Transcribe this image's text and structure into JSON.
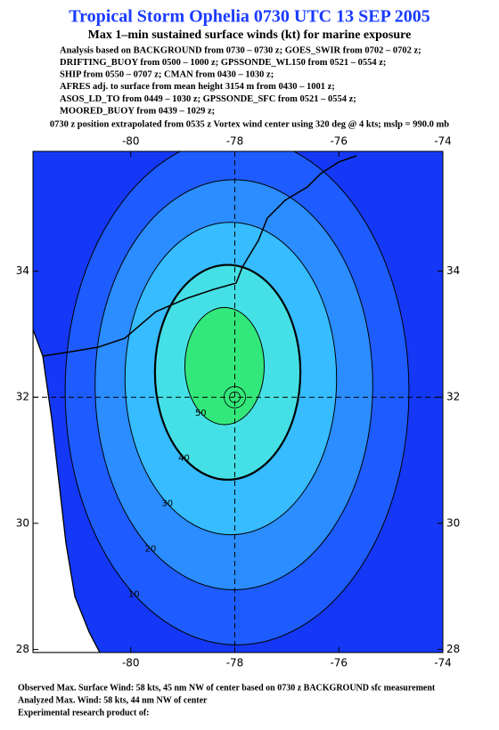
{
  "header": {
    "title": "Tropical Storm Ophelia 0730 UTC 13 SEP 2005",
    "subtitle": "Max 1–min sustained surface winds (kt) for marine exposure",
    "analysis_lines": [
      "Analysis based on  BACKGROUND from 0730 – 0730 z;  GOES_SWIR from 0702 – 0702 z;",
      "DRIFTING_BUOY from 0500 – 1000 z;  GPSSONDE_WL150 from 0521 – 0554 z;",
      "SHIP from 0550 – 0707 z;  CMAN from 0430 – 1030 z;",
      "AFRES adj. to surface from mean height 3154 m from 0430 – 1001 z;",
      "ASOS_LD_TO from 0449 – 1030 z;  GPSSONDE_SFC from 0521 – 0554 z;",
      "MOORED_BUOY from 0439 – 1029 z;"
    ],
    "position_note": "0730 z position extrapolated from 0535 z Vortex wind center using 320 deg @ 4 kts; mslp = 990.0 mb"
  },
  "map": {
    "xlim": [
      -81.88,
      -74
    ],
    "ylim": [
      27.95,
      35.9
    ],
    "xticks": [
      -80,
      -78,
      -76,
      -74
    ],
    "yticks": [
      28,
      30,
      32,
      34
    ],
    "center": {
      "lon": -78,
      "lat": 32
    },
    "base_color": "#1438f5",
    "contour_levels": [
      10,
      20,
      30,
      40,
      50
    ],
    "level_colors": [
      "#1e5cff",
      "#2b8dff",
      "#36bcff",
      "#45e0e6",
      "#33e87a"
    ]
  },
  "footer": {
    "lines": [
      "Observed Max. Surface Wind: 58 kts, 45 nm NW of center based on 0730 z BACKGROUND sfc measurement",
      "Analyzed Max. Wind: 58 kts, 44 nm NW of center",
      "Experimental research product of:"
    ]
  }
}
